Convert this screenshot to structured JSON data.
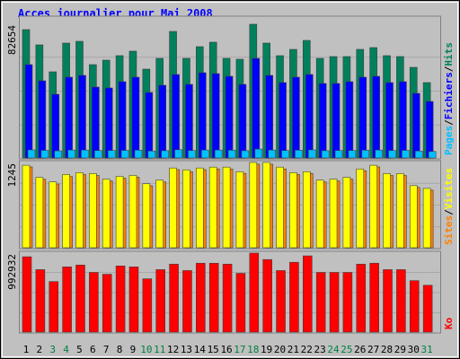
{
  "title": "Acces journalier pour Mai 2008",
  "separator": "/",
  "weekend": [
    2,
    3,
    9,
    10,
    16,
    17,
    23,
    24,
    30
  ],
  "weekend_color": "#008040",
  "chart_data": [
    {
      "type": "bar",
      "ymax": 82654,
      "series": [
        {
          "name": "Hits",
          "color": "#00805c",
          "values": [
            79325,
            69897,
            53255,
            71005,
            72115,
            57692,
            60466,
            63240,
            66013,
            54919,
            61575,
            78217,
            61575,
            68787,
            71560,
            61575,
            61020,
            82654,
            71005,
            63240,
            67122,
            72670,
            61575,
            62684,
            62684,
            67122,
            68232,
            63240,
            62684,
            56028,
            46597
          ]
        },
        {
          "name": "Fichiers",
          "color": "#0000ff",
          "values": [
            57692,
            47707,
            39386,
            49926,
            51035,
            43824,
            43269,
            47152,
            49926,
            40495,
            44933,
            51590,
            45488,
            52699,
            52144,
            50480,
            45488,
            61575,
            51035,
            46597,
            49926,
            51590,
            46043,
            46043,
            47152,
            49926,
            50480,
            46597,
            47152,
            39941,
            34948
          ]
        },
        {
          "name": "Pages",
          "color": "#00c0ff",
          "values": [
            5000,
            4700,
            4400,
            4900,
            4900,
            4600,
            4600,
            4700,
            4800,
            4300,
            4500,
            5100,
            4600,
            4900,
            4900,
            4800,
            4500,
            5500,
            4900,
            4600,
            4800,
            5000,
            4500,
            4600,
            4600,
            4800,
            4900,
            4600,
            4700,
            4300,
            4000
          ]
        }
      ]
    },
    {
      "type": "bar",
      "ymax": 1245,
      "series": [
        {
          "name": "Sites",
          "color": "#ff8000",
          "values": [
            1180,
            1000,
            930,
            1040,
            1070,
            1055,
            975,
            1015,
            1030,
            905,
            960,
            1140,
            1110,
            1140,
            1150,
            1150,
            1085,
            1220,
            1220,
            1150,
            1070,
            1085,
            960,
            975,
            1000,
            1125,
            1180,
            1055,
            1055,
            880,
            840
          ]
        },
        {
          "name": "Visites",
          "color": "#ffff00",
          "values": [
            1204,
            1028,
            961,
            1069,
            1096,
            1083,
            1001,
            1042,
            1056,
            934,
            988,
            1164,
            1137,
            1164,
            1177,
            1177,
            1110,
            1245,
            1245,
            1177,
            1096,
            1110,
            988,
            1001,
            1028,
            1150,
            1204,
            1083,
            1083,
            907,
            866
          ]
        }
      ]
    },
    {
      "type": "bar",
      "ymax": 992932,
      "categories": [
        "1",
        "2",
        "3",
        "4",
        "5",
        "6",
        "7",
        "8",
        "9",
        "10",
        "11",
        "12",
        "13",
        "14",
        "15",
        "16",
        "17",
        "18",
        "19",
        "20",
        "21",
        "22",
        "23",
        "24",
        "25",
        "26",
        "27",
        "28",
        "29",
        "30",
        "31"
      ],
      "series": [
        {
          "name": "Ko",
          "color": "#ff0000",
          "values": [
            946744,
            785117,
            635026,
            819753,
            842845,
            750479,
            727388,
            831299,
            819753,
            669664,
            785117,
            854390,
            773571,
            865929,
            865929,
            854390,
            738935,
            992932,
            912112,
            773571,
            877475,
            958295,
            750479,
            750479,
            750479,
            854390,
            865929,
            785117,
            785117,
            646561,
            588832
          ]
        }
      ]
    }
  ]
}
